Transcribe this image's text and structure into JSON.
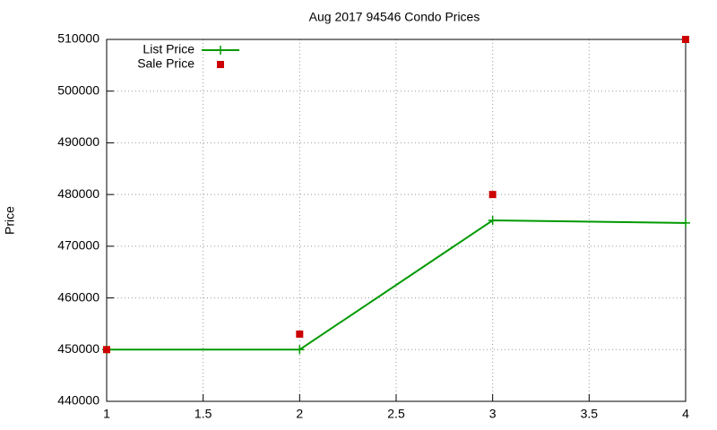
{
  "chart_data": {
    "type": "line",
    "title": "Aug 2017 94546 Condo Prices",
    "y_label": "Price",
    "x": [
      1,
      2,
      3,
      4
    ],
    "series": [
      {
        "name": "List Price",
        "color": "#009900",
        "values": [
          450000,
          450000,
          475000,
          474500
        ],
        "line": true,
        "marker": "plus"
      },
      {
        "name": "Sale Price",
        "color": "#cc0000",
        "values": [
          450000,
          453000,
          480000,
          510000
        ],
        "line": false,
        "marker": "square"
      }
    ],
    "xlim": [
      1,
      4
    ],
    "xticks": [
      1,
      1.5,
      2,
      2.5,
      3,
      3.5,
      4
    ],
    "ylim": [
      440000,
      510000
    ],
    "yticks": [
      440000,
      450000,
      460000,
      470000,
      480000,
      490000,
      500000,
      510000
    ],
    "grid": true,
    "legend": "top-left"
  }
}
